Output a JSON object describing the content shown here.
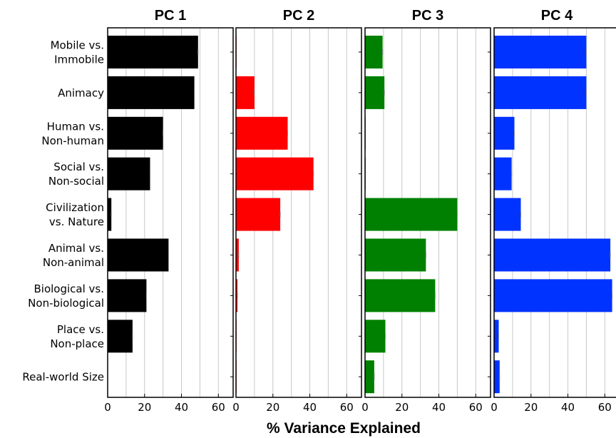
{
  "chart_data": {
    "type": "bar",
    "orientation": "horizontal",
    "layout": "small-multiples",
    "xlabel": "% Variance Explained",
    "xlim": [
      0,
      68
    ],
    "xticks": [
      0,
      20,
      40,
      60
    ],
    "grid": true,
    "categories": [
      [
        "Mobile vs.",
        "Immobile"
      ],
      [
        "Animacy"
      ],
      [
        "Human vs.",
        "Non-human"
      ],
      [
        "Social vs.",
        "Non-social"
      ],
      [
        "Civilization",
        "vs. Nature"
      ],
      [
        "Animal vs.",
        "Non-animal"
      ],
      [
        "Biological vs.",
        "Non-biological"
      ],
      [
        "Place vs.",
        "Non-place"
      ],
      [
        "Real-world Size"
      ]
    ],
    "series": [
      {
        "name": "PC 1",
        "color": "#000000",
        "values": [
          49,
          47,
          30,
          23,
          2,
          33,
          21,
          13.5,
          0
        ]
      },
      {
        "name": "PC 2",
        "color": "#ff0000",
        "values": [
          0.3,
          10,
          28,
          42,
          24,
          1.5,
          0.8,
          0.3,
          0.3
        ]
      },
      {
        "name": "PC 3",
        "color": "#008000",
        "values": [
          9.5,
          10.5,
          0.3,
          0.3,
          50,
          33,
          38,
          11,
          5
        ]
      },
      {
        "name": "PC 4",
        "color": "#0033ff",
        "values": [
          50,
          50,
          11,
          9.5,
          14.5,
          63,
          64,
          2.5,
          3
        ]
      }
    ]
  }
}
